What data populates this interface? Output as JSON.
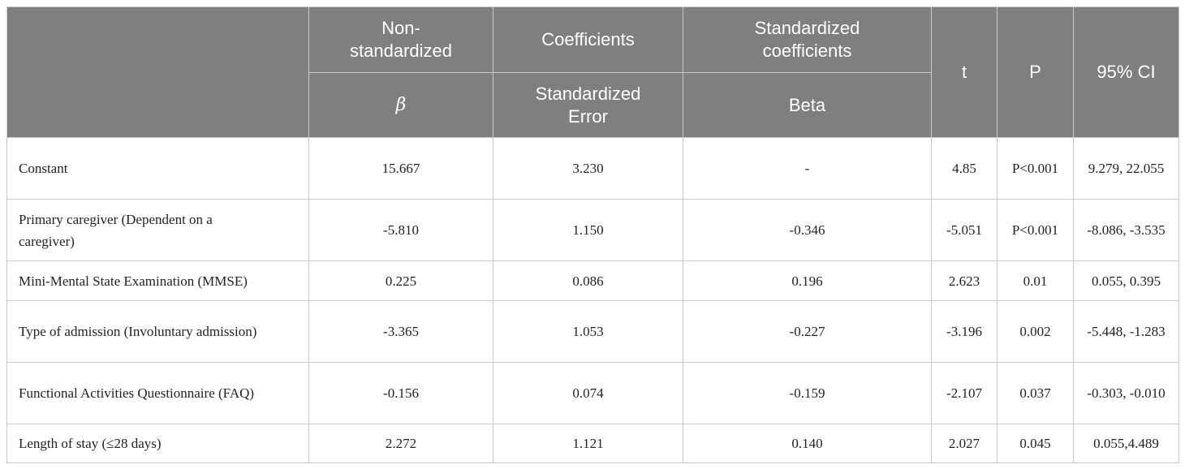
{
  "table": {
    "header": {
      "group_1": "Non-standardized",
      "group_2": "Coefficients",
      "group_3": "Standardized coefficients",
      "t": "t",
      "p": "P",
      "ci": "95% CI",
      "sub_1": "β",
      "sub_2": "Standardized Error",
      "sub_3": "Beta"
    },
    "rows": [
      [
        "Constant",
        "15.667",
        "3.230",
        "-",
        "4.85",
        "P<0.001",
        "9.279, 22.055"
      ],
      [
        "Primary caregiver (Dependent on a caregiver)",
        "-5.810",
        "1.150",
        "-0.346",
        "-5.051",
        "P<0.001",
        "-8.086, -3.535"
      ],
      [
        "Mini-Mental State Examination (MMSE)",
        "0.225",
        "0.086",
        "0.196",
        "2.623",
        "0.01",
        "0.055, 0.395"
      ],
      [
        "Type of admission (Involuntary admission)",
        "-3.365",
        "1.053",
        "-0.227",
        "-3.196",
        "0.002",
        "-5.448, -1.283"
      ],
      [
        "Functional Activities Questionnaire (FAQ)",
        "-0.156",
        "0.074",
        "-0.159",
        "-2.107",
        "0.037",
        "-0.303, -0.010"
      ],
      [
        "Length of stay (≤28 days)",
        "2.272",
        "1.121",
        "0.140",
        "2.027",
        "0.045",
        "0.055,4.489"
      ]
    ]
  }
}
